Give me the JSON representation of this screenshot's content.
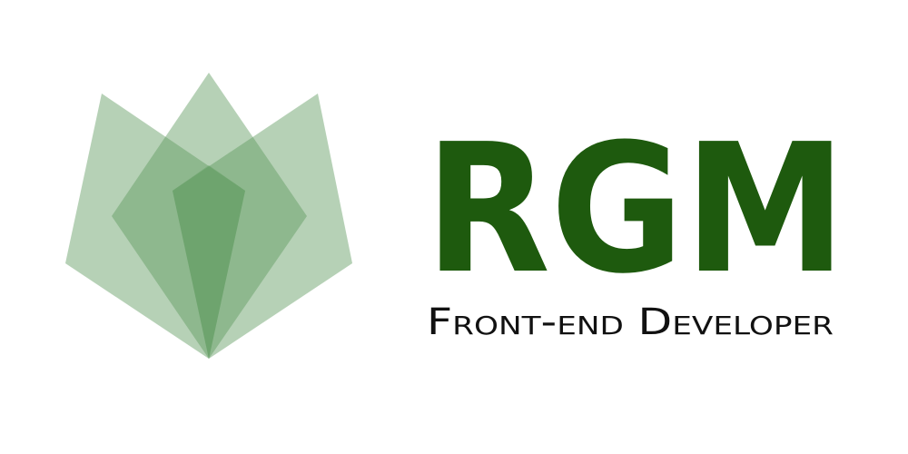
{
  "logo": {
    "mark": "RGM",
    "tagline": "Front-end Developer"
  }
}
